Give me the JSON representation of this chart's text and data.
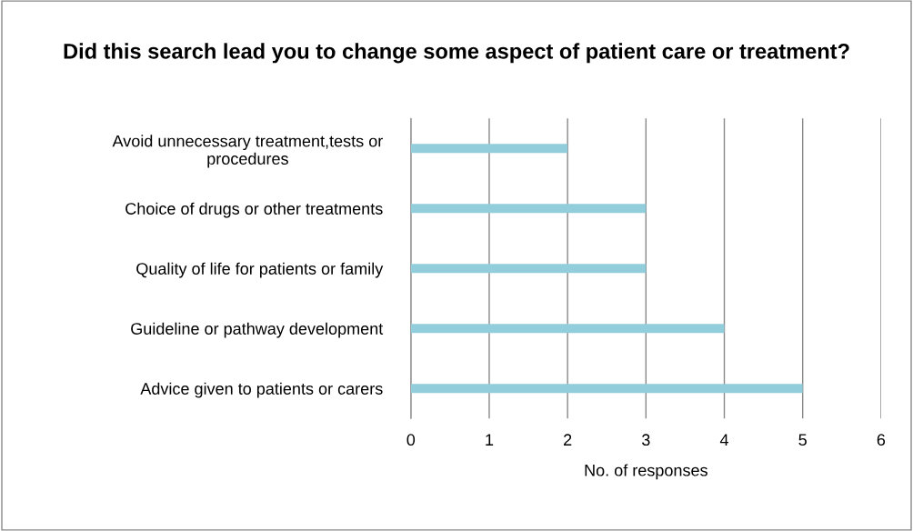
{
  "chart_data": {
    "type": "bar",
    "orientation": "horizontal",
    "title": "Did this search lead you to change some aspect of patient care or treatment?",
    "xlabel": "No. of responses",
    "categories": [
      "Avoid unnecessary treatment,tests or\nprocedures",
      "Choice of drugs or other treatments",
      "Quality of life for patients or family",
      "Guideline or pathway development",
      "Advice given to patients or carers"
    ],
    "values": [
      2,
      3,
      3,
      4,
      5
    ],
    "color": "#92cddc",
    "xlim": [
      0,
      6
    ],
    "xticks": [
      0,
      1,
      2,
      3,
      4,
      5,
      6
    ],
    "grid": "x",
    "legend": false
  }
}
